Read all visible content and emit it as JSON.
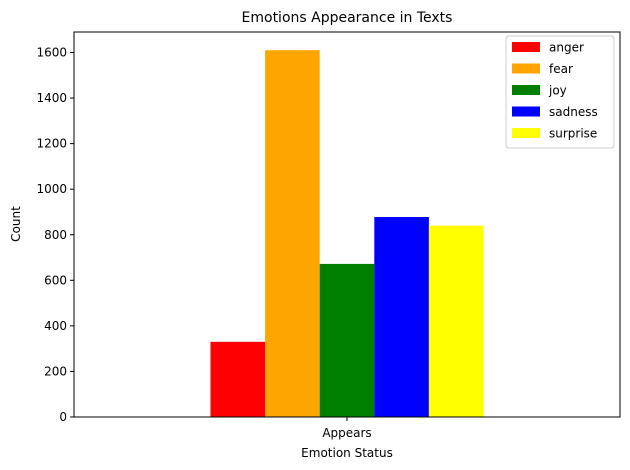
{
  "chart_data": {
    "type": "bar",
    "title": "Emotions Appearance in Texts",
    "xlabel": "Emotion Status",
    "ylabel": "Count",
    "categories": [
      "Appears"
    ],
    "series": [
      {
        "name": "anger",
        "values": [
          330
        ],
        "color": "#ff0000"
      },
      {
        "name": "fear",
        "values": [
          1610
        ],
        "color": "#ffa500"
      },
      {
        "name": "joy",
        "values": [
          672
        ],
        "color": "#008000"
      },
      {
        "name": "sadness",
        "values": [
          878
        ],
        "color": "#0000ff"
      },
      {
        "name": "surprise",
        "values": [
          840
        ],
        "color": "#ffff00"
      }
    ],
    "ylim": [
      0,
      1690
    ],
    "yticks": [
      0,
      200,
      400,
      600,
      800,
      1000,
      1200,
      1400,
      1600
    ],
    "grid": false,
    "legend_position": "top-right"
  }
}
